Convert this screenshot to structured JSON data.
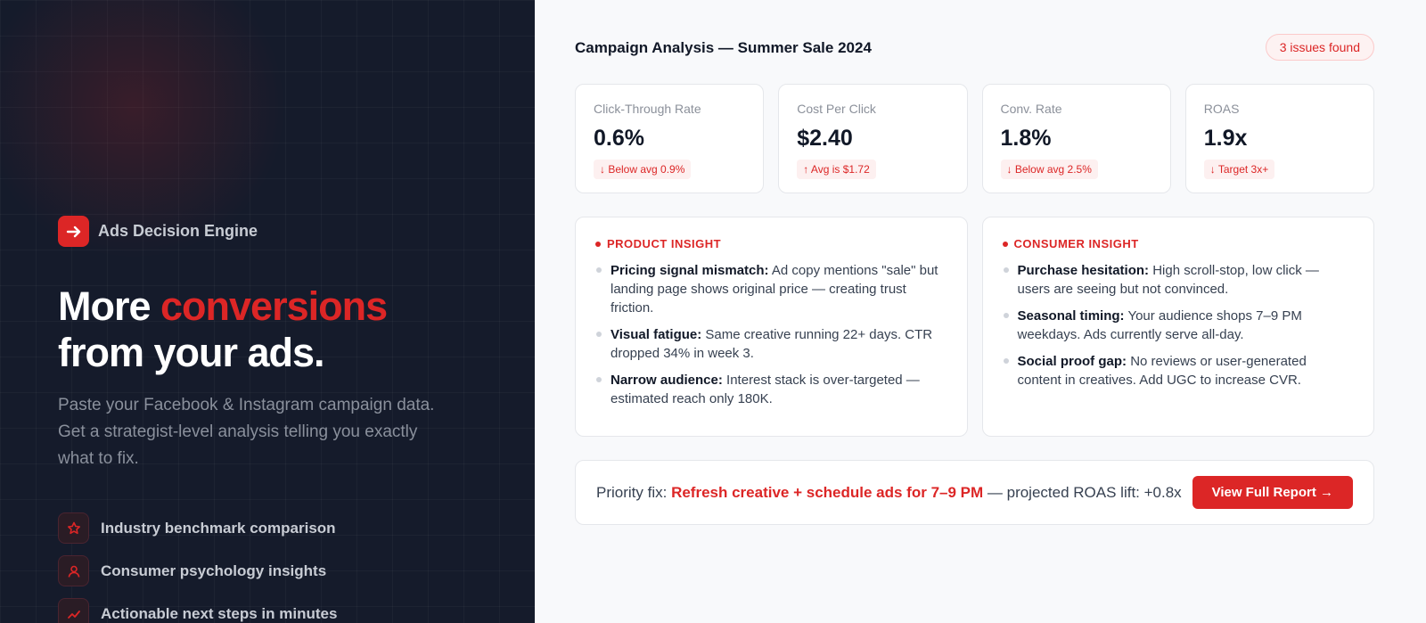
{
  "hero": {
    "brand": "Ads Decision Engine",
    "headline": {
      "line1_start": "More",
      "line1_highlight": "conversions",
      "line2": "from your ads."
    },
    "subtitle": "Paste your Facebook & Instagram campaign data. Get a strategist-level analysis telling you exactly what to fix.",
    "features": [
      "Industry benchmark comparison",
      "Consumer psychology insights",
      "Actionable next steps in minutes"
    ]
  },
  "report": {
    "title": "Campaign Analysis — Summer Sale 2024",
    "badge": "3 issues found",
    "metrics": [
      {
        "label": "Click-Through Rate",
        "value": "0.6%",
        "note": "↓ Below avg 0.9%"
      },
      {
        "label": "Cost Per Click",
        "value": "$2.40",
        "note": "↑ Avg is $1.72"
      },
      {
        "label": "Conv. Rate",
        "value": "1.8%",
        "note": "↓ Below avg 2.5%"
      },
      {
        "label": "ROAS",
        "value": "1.9x",
        "note": "↓ Target 3x+"
      }
    ],
    "insights": [
      {
        "heading": "PRODUCT INSIGHT",
        "items": [
          {
            "title": "Pricing signal mismatch:",
            "text": "Ad copy mentions \"sale\" but landing page shows original price — creating trust friction."
          },
          {
            "title": "Visual fatigue:",
            "text": "Same creative running 22+ days. CTR dropped 34% in week 3."
          },
          {
            "title": "Narrow audience:",
            "text": "Interest stack is over-targeted — estimated reach only 180K."
          }
        ]
      },
      {
        "heading": "CONSUMER INSIGHT",
        "items": [
          {
            "title": "Purchase hesitation:",
            "text": "High scroll-stop, low click — users are seeing but not convinced."
          },
          {
            "title": "Seasonal timing:",
            "text": "Your audience shops 7–9 PM weekdays. Ads currently serve all-day."
          },
          {
            "title": "Social proof gap:",
            "text": "No reviews or user-generated content in creatives. Add UGC to increase CVR."
          }
        ]
      }
    ],
    "priority": {
      "label": "Priority fix:",
      "highlight": "Refresh creative + schedule ads for 7–9 PM",
      "rest": "— projected ROAS lift: +0.8x",
      "button": "View Full Report →"
    }
  }
}
